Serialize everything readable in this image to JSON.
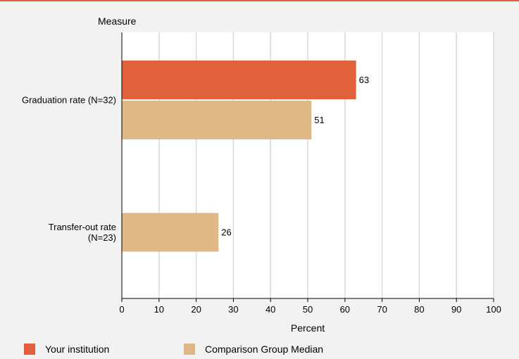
{
  "chart_data": {
    "type": "bar",
    "orientation": "horizontal",
    "title": "",
    "ylabel": "Measure",
    "xlabel": "Percent",
    "categories": [
      "Graduation rate (N=32)",
      "Transfer-out rate (N=23)"
    ],
    "category_label_lines": [
      [
        "Graduation rate (N=32)"
      ],
      [
        "Transfer-out rate",
        "(N=23)"
      ]
    ],
    "series": [
      {
        "name": "Your institution",
        "color": "#e0613c",
        "values": [
          63,
          null
        ]
      },
      {
        "name": "Comparison Group Median",
        "color": "#dfb985",
        "values": [
          51,
          26
        ]
      }
    ],
    "xlim": [
      0,
      100
    ],
    "xticks": [
      0,
      10,
      20,
      30,
      40,
      50,
      60,
      70,
      80,
      90,
      100
    ],
    "grid": true,
    "legend_position": "bottom"
  },
  "legend": {
    "items": [
      {
        "label": "Your institution",
        "color": "#e0613c"
      },
      {
        "label": "Comparison Group Median",
        "color": "#dfb985"
      }
    ]
  },
  "colors": {
    "accent": "#e0613c",
    "background": "#f2f2f2",
    "plot_background": "#ffffff",
    "grid": "#d9d9d9"
  }
}
